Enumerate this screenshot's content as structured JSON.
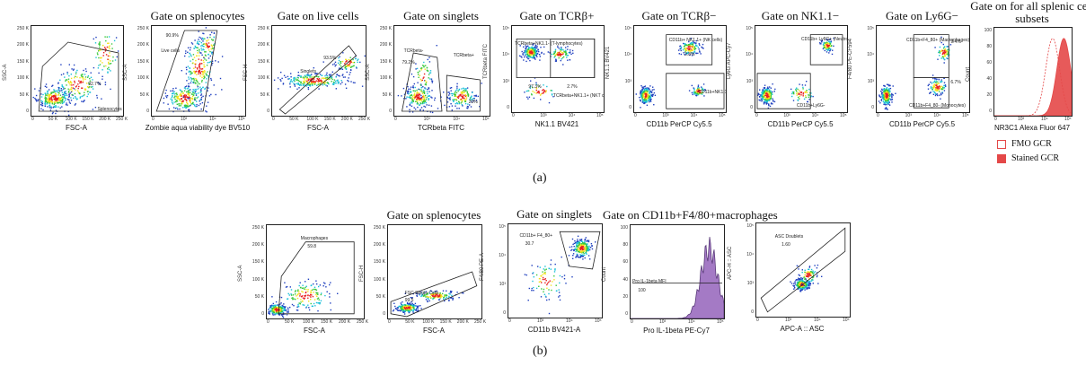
{
  "colors": {
    "cold": "#1f3fbf",
    "mid": "#19c0d8",
    "warm": "#38c83a",
    "hot": "#f4e21b",
    "core": "#e81e1e",
    "gate": "#222222",
    "hist": "#9a6bbf",
    "fmo": "#e44848",
    "stained": "#e44848"
  },
  "sub_a": "(a)",
  "sub_b": "(b)",
  "legend": {
    "fmo": "FMO GCR",
    "stained": "Stained GCR"
  },
  "chart_data": [
    {
      "id": "a1",
      "type": "scatter",
      "title": "",
      "xlabel": "FSC-A",
      "ylabel": "SSC-A",
      "yticks": [
        "250 K",
        "200 K",
        "150 K",
        "100 K",
        "50 K",
        "0"
      ],
      "xticks": [
        "0",
        "50 K",
        "100 K",
        "150 K",
        "200 K",
        "250 K"
      ],
      "annotations": [
        {
          "text": "92.7%"
        },
        {
          "text": "Splenocytes"
        }
      ]
    },
    {
      "id": "a2",
      "type": "scatter",
      "title": "Gate on splenocytes",
      "xlabel": "Zombie aqua viability dye BV510",
      "ylabel": "SSC-A",
      "yticks": [
        "250 K",
        "200 K",
        "150 K",
        "100 K",
        "50 K",
        "0"
      ],
      "xticks": [
        "0",
        "10³",
        "10⁴",
        "10⁵"
      ],
      "annotations": [
        {
          "text": "90.9%"
        },
        {
          "text": "Live cells"
        }
      ]
    },
    {
      "id": "a3",
      "type": "scatter",
      "title": "Gate on live cells",
      "xlabel": "FSC-A",
      "ylabel": "FSC-H",
      "yticks": [
        "250 K",
        "200 K",
        "150 K",
        "100 K",
        "50 K",
        "0"
      ],
      "xticks": [
        "0",
        "50 K",
        "100 K",
        "150 K",
        "200 K",
        "250 K"
      ],
      "annotations": [
        {
          "text": "93.5%"
        },
        {
          "text": "Singlets"
        }
      ]
    },
    {
      "id": "a4",
      "type": "scatter",
      "title": "Gate on singlets",
      "xlabel": "TCRbeta FITC",
      "ylabel": "SSC-A",
      "yticks": [
        "250 K",
        "200 K",
        "150 K",
        "100 K",
        "50 K",
        "0"
      ],
      "xticks": [
        "0",
        "10³",
        "10⁴",
        "10⁵"
      ],
      "annotations": [
        {
          "text": "TCRbeta-"
        },
        {
          "text": "79.2%"
        },
        {
          "text": "TCRbeta+"
        },
        {
          "text": "20%"
        }
      ]
    },
    {
      "id": "a5",
      "type": "scatter",
      "title": "Gate on TCRβ+",
      "xlabel": "NK1.1 BV421",
      "ylabel": "TCRbeta FITC",
      "yticks": [
        "10⁵",
        "10⁴",
        "10³",
        "0"
      ],
      "xticks": [
        "0",
        "10³",
        "10⁴",
        "10⁵"
      ],
      "annotations": [
        {
          "text": "TCRbeta+NK1.1- (T-lymphocytes)"
        },
        {
          "text": "97.3%"
        },
        {
          "text": "2.7%"
        },
        {
          "text": "TCRbeta+NK1.1+ (NKT cells)"
        }
      ]
    },
    {
      "id": "a6",
      "type": "scatter",
      "title": "Gate on TCRβ−",
      "xlabel": "CD11b PerCP Cy5.5",
      "ylabel": "NK1.1 BV421",
      "yticks": [
        "10⁵",
        "10⁴",
        "10³",
        "0"
      ],
      "xticks": [
        "0",
        "10³",
        "10⁴",
        "10⁵"
      ],
      "annotations": [
        {
          "text": "CD11b+ NK1.1+ (NK cells)"
        },
        {
          "text": "2.8%"
        },
        {
          "text": "CD11b+NK1.1-"
        }
      ]
    },
    {
      "id": "a7",
      "type": "scatter",
      "title": "Gate on NK1.1−",
      "xlabel": "CD11b PerCP Cy5.5",
      "ylabel": "Ly6G APC-Cy7",
      "yticks": [
        "10⁵",
        "10⁴",
        "10³",
        "0"
      ],
      "xticks": [
        "0",
        "10³",
        "10⁴",
        "10⁵"
      ],
      "annotations": [
        {
          "text": "CD11b+ Ly6G+ (Neutrophils)"
        },
        {
          "text": "CD11b+Ly6G-"
        }
      ]
    },
    {
      "id": "a8",
      "type": "scatter",
      "title": "Gate on Ly6G−",
      "xlabel": "CD11b PerCP Cy5.5",
      "ylabel": "F4/80 PE-CF594",
      "yticks": [
        "10⁵",
        "10⁴",
        "10³",
        "0"
      ],
      "xticks": [
        "0",
        "10³",
        "10⁴",
        "10⁵"
      ],
      "annotations": [
        {
          "text": "CD11b+F4_80+ (Macrophages)"
        },
        {
          "text": "9.4%"
        },
        {
          "text": "6.7%"
        },
        {
          "text": "CD11b+F4_80- (Monocytes)"
        }
      ]
    },
    {
      "id": "a9",
      "type": "area",
      "title": "Gate on for all splenic cell subsets",
      "xlabel": "NR3C1 Alexa Fluor 647",
      "ylabel": "Count",
      "yticks": [
        "100",
        "80",
        "60",
        "40",
        "20",
        "0"
      ],
      "xticks": [
        "0",
        "10³",
        "10⁴",
        "10⁵"
      ],
      "series": [
        {
          "name": "FMO GCR",
          "mode": 2.6
        },
        {
          "name": "Stained GCR",
          "mode": 3.1
        }
      ]
    },
    {
      "id": "b1",
      "type": "scatter",
      "title": "",
      "xlabel": "FSC-A",
      "ylabel": "SSC-A",
      "yticks": [
        "250 K",
        "200 K",
        "150 K",
        "100 K",
        "50 K",
        "0"
      ],
      "xticks": [
        "0",
        "50 K",
        "100 K",
        "150 K",
        "200 K",
        "250 K"
      ],
      "annotations": [
        {
          "text": "Macrophages"
        },
        {
          "text": "59.8"
        }
      ]
    },
    {
      "id": "b2",
      "type": "scatter",
      "title": "Gate on splenocytes",
      "xlabel": "FSC-A",
      "ylabel": "FSC-H",
      "yticks": [
        "250 K",
        "200 K",
        "150 K",
        "100 K",
        "50 K",
        "0"
      ],
      "xticks": [
        "0",
        "50 K",
        "100 K",
        "150 K",
        "200 K",
        "250 K"
      ],
      "annotations": [
        {
          "text": "FSC Single Cells"
        },
        {
          "text": "99.5"
        }
      ]
    },
    {
      "id": "b3",
      "type": "scatter",
      "title": "Gate on singlets",
      "xlabel": "CD11b BV421-A",
      "ylabel": "F4/80 PE-A",
      "yticks": [
        "10⁵",
        "10⁴",
        "10³",
        "0"
      ],
      "xticks": [
        "0",
        "10³",
        "10⁴",
        "10⁵"
      ],
      "annotations": [
        {
          "text": "CD11b+ F4_80+"
        },
        {
          "text": "30.7"
        }
      ]
    },
    {
      "id": "b4",
      "type": "area",
      "title": "Gate on CD11b+F4/80+macrophages",
      "xlabel": "Pro IL-1beta PE-Cy7",
      "ylabel": "Count",
      "yticks": [
        "100",
        "80",
        "60",
        "40",
        "20",
        "0"
      ],
      "xticks": [
        "0",
        "10³",
        "10⁴",
        "10⁵"
      ],
      "annotations": [
        {
          "text": "Pro IL-1beta MFI"
        },
        {
          "text": "100"
        }
      ]
    },
    {
      "id": "b5",
      "type": "scatter",
      "title": "",
      "xlabel": "APC-A :: ASC",
      "ylabel": "APC-H :: ASC",
      "yticks": [
        "10⁵",
        "10⁴",
        "10³",
        "0"
      ],
      "xticks": [
        "0",
        "10³",
        "10⁴",
        "10⁵"
      ],
      "annotations": [
        {
          "text": "ASC Doublets"
        },
        {
          "text": "1.60"
        }
      ]
    }
  ]
}
